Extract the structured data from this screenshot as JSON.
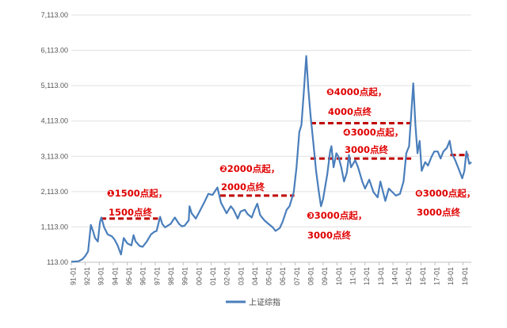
{
  "chart_data": {
    "type": "line",
    "title": "",
    "xlabel": "",
    "ylabel": "",
    "ylim": [
      113,
      7113
    ],
    "y_ticks": [
      "113.00",
      "1,113.00",
      "2,113.00",
      "3,113.00",
      "4,113.00",
      "5,113.00",
      "6,113.00",
      "7,113.00"
    ],
    "y_tick_values": [
      113,
      1113,
      2113,
      3113,
      4113,
      5113,
      6113,
      7113
    ],
    "x_ticks": [
      "91-01",
      "92-01",
      "93-01",
      "94-01",
      "95-01",
      "96-01",
      "97-01",
      "98-01",
      "99-01",
      "00-01",
      "01-01",
      "02-01",
      "03-01",
      "04-01",
      "05-01",
      "06-01",
      "07-01",
      "08-01",
      "09-01",
      "10-01",
      "11-01",
      "12-01",
      "13-01",
      "14-01",
      "15-01",
      "16-01",
      "17-01",
      "18-01",
      "19-01"
    ],
    "x_range": [
      1991.0,
      2019.6
    ],
    "legend": {
      "position": "bottom",
      "entries": [
        "上证综指"
      ]
    },
    "series": [
      {
        "name": "上证综指",
        "color": "#4a7ebb",
        "points": [
          [
            1991.0,
            127
          ],
          [
            1991.5,
            140
          ],
          [
            1991.8,
            200
          ],
          [
            1992.0,
            293
          ],
          [
            1992.2,
            420
          ],
          [
            1992.4,
            1170
          ],
          [
            1992.55,
            1000
          ],
          [
            1992.7,
            800
          ],
          [
            1992.9,
            700
          ],
          [
            1993.05,
            1250
          ],
          [
            1993.15,
            1380
          ],
          [
            1993.35,
            1100
          ],
          [
            1993.6,
            900
          ],
          [
            1993.9,
            850
          ],
          [
            1994.1,
            750
          ],
          [
            1994.3,
            600
          ],
          [
            1994.55,
            330
          ],
          [
            1994.75,
            800
          ],
          [
            1995.0,
            650
          ],
          [
            1995.3,
            590
          ],
          [
            1995.45,
            880
          ],
          [
            1995.6,
            700
          ],
          [
            1995.9,
            570
          ],
          [
            1996.1,
            550
          ],
          [
            1996.4,
            700
          ],
          [
            1996.7,
            900
          ],
          [
            1996.95,
            980
          ],
          [
            1997.1,
            1000
          ],
          [
            1997.35,
            1400
          ],
          [
            1997.5,
            1200
          ],
          [
            1997.7,
            1100
          ],
          [
            1997.9,
            1150
          ],
          [
            1998.1,
            1200
          ],
          [
            1998.4,
            1380
          ],
          [
            1998.7,
            1200
          ],
          [
            1998.9,
            1130
          ],
          [
            1999.1,
            1150
          ],
          [
            1999.4,
            1300
          ],
          [
            1999.45,
            1700
          ],
          [
            1999.6,
            1500
          ],
          [
            1999.9,
            1350
          ],
          [
            2000.1,
            1500
          ],
          [
            2000.5,
            1800
          ],
          [
            2000.8,
            2050
          ],
          [
            2001.1,
            2020
          ],
          [
            2001.45,
            2230
          ],
          [
            2001.7,
            1800
          ],
          [
            2001.9,
            1650
          ],
          [
            2002.1,
            1500
          ],
          [
            2002.4,
            1700
          ],
          [
            2002.6,
            1600
          ],
          [
            2002.9,
            1350
          ],
          [
            2003.1,
            1550
          ],
          [
            2003.4,
            1600
          ],
          [
            2003.6,
            1480
          ],
          [
            2003.9,
            1380
          ],
          [
            2004.1,
            1600
          ],
          [
            2004.3,
            1770
          ],
          [
            2004.5,
            1450
          ],
          [
            2004.8,
            1300
          ],
          [
            2005.1,
            1200
          ],
          [
            2005.4,
            1100
          ],
          [
            2005.6,
            1000
          ],
          [
            2005.9,
            1080
          ],
          [
            2006.1,
            1250
          ],
          [
            2006.4,
            1600
          ],
          [
            2006.6,
            1700
          ],
          [
            2006.9,
            2100
          ],
          [
            2007.1,
            2800
          ],
          [
            2007.3,
            3800
          ],
          [
            2007.45,
            4000
          ],
          [
            2007.6,
            4800
          ],
          [
            2007.8,
            5954
          ],
          [
            2007.95,
            5000
          ],
          [
            2008.1,
            4300
          ],
          [
            2008.3,
            3500
          ],
          [
            2008.5,
            2700
          ],
          [
            2008.7,
            2100
          ],
          [
            2008.85,
            1700
          ],
          [
            2009.0,
            1900
          ],
          [
            2009.3,
            2600
          ],
          [
            2009.5,
            3250
          ],
          [
            2009.6,
            3400
          ],
          [
            2009.75,
            2800
          ],
          [
            2009.95,
            3200
          ],
          [
            2010.1,
            3100
          ],
          [
            2010.3,
            2800
          ],
          [
            2010.5,
            2400
          ],
          [
            2010.7,
            2650
          ],
          [
            2010.85,
            3150
          ],
          [
            2011.0,
            2800
          ],
          [
            2011.3,
            3000
          ],
          [
            2011.5,
            2800
          ],
          [
            2011.8,
            2400
          ],
          [
            2012.0,
            2200
          ],
          [
            2012.3,
            2450
          ],
          [
            2012.6,
            2100
          ],
          [
            2012.9,
            1950
          ],
          [
            2013.1,
            2400
          ],
          [
            2013.45,
            1850
          ],
          [
            2013.7,
            2200
          ],
          [
            2013.95,
            2100
          ],
          [
            2014.2,
            2000
          ],
          [
            2014.5,
            2050
          ],
          [
            2014.75,
            2400
          ],
          [
            2014.95,
            3200
          ],
          [
            2015.15,
            3400
          ],
          [
            2015.3,
            4300
          ],
          [
            2015.45,
            5178
          ],
          [
            2015.6,
            4000
          ],
          [
            2015.75,
            3200
          ],
          [
            2015.9,
            3550
          ],
          [
            2016.05,
            2700
          ],
          [
            2016.3,
            2950
          ],
          [
            2016.5,
            2850
          ],
          [
            2016.75,
            3100
          ],
          [
            2016.95,
            3250
          ],
          [
            2017.2,
            3250
          ],
          [
            2017.4,
            3050
          ],
          [
            2017.6,
            3250
          ],
          [
            2017.85,
            3350
          ],
          [
            2018.05,
            3550
          ],
          [
            2018.2,
            3200
          ],
          [
            2018.45,
            3000
          ],
          [
            2018.7,
            2750
          ],
          [
            2018.95,
            2490
          ],
          [
            2019.1,
            2700
          ],
          [
            2019.25,
            3250
          ],
          [
            2019.45,
            2900
          ],
          [
            2019.6,
            2950
          ]
        ]
      }
    ],
    "reference_lines": [
      {
        "x_start": 1993.1,
        "x_end": 1997.2,
        "y": 1350,
        "color": "#c00000",
        "style": "dashed"
      },
      {
        "x_start": 2001.65,
        "x_end": 2006.95,
        "y": 2000,
        "color": "#c00000",
        "style": "dashed"
      },
      {
        "x_start": 2008.1,
        "x_end": 2015.3,
        "y": 4050,
        "color": "#c00000",
        "style": "dashed"
      },
      {
        "x_start": 2008.1,
        "x_end": 2015.3,
        "y": 3050,
        "color": "#c00000",
        "style": "dashed"
      },
      {
        "x_start": 2018.1,
        "x_end": 2019.4,
        "y": 3150,
        "color": "#c00000",
        "style": "dashed"
      }
    ],
    "annotations": [
      {
        "id": "ann-1",
        "line1": "❶1500点起，",
        "line2": "1500点终"
      },
      {
        "id": "ann-2",
        "line1": "❷2000点起，",
        "line2": "2000点终"
      },
      {
        "id": "ann-3",
        "line1": "❸3000点起，",
        "line2": "3000点终"
      },
      {
        "id": "ann-4",
        "line1": "❹3000点起，",
        "line2": "3000点终"
      },
      {
        "id": "ann-5",
        "line1": "❺4000点起，",
        "line2": "4000点终"
      },
      {
        "id": "ann-6",
        "line1": "❻3000点起，",
        "line2": "3000点终"
      }
    ]
  }
}
